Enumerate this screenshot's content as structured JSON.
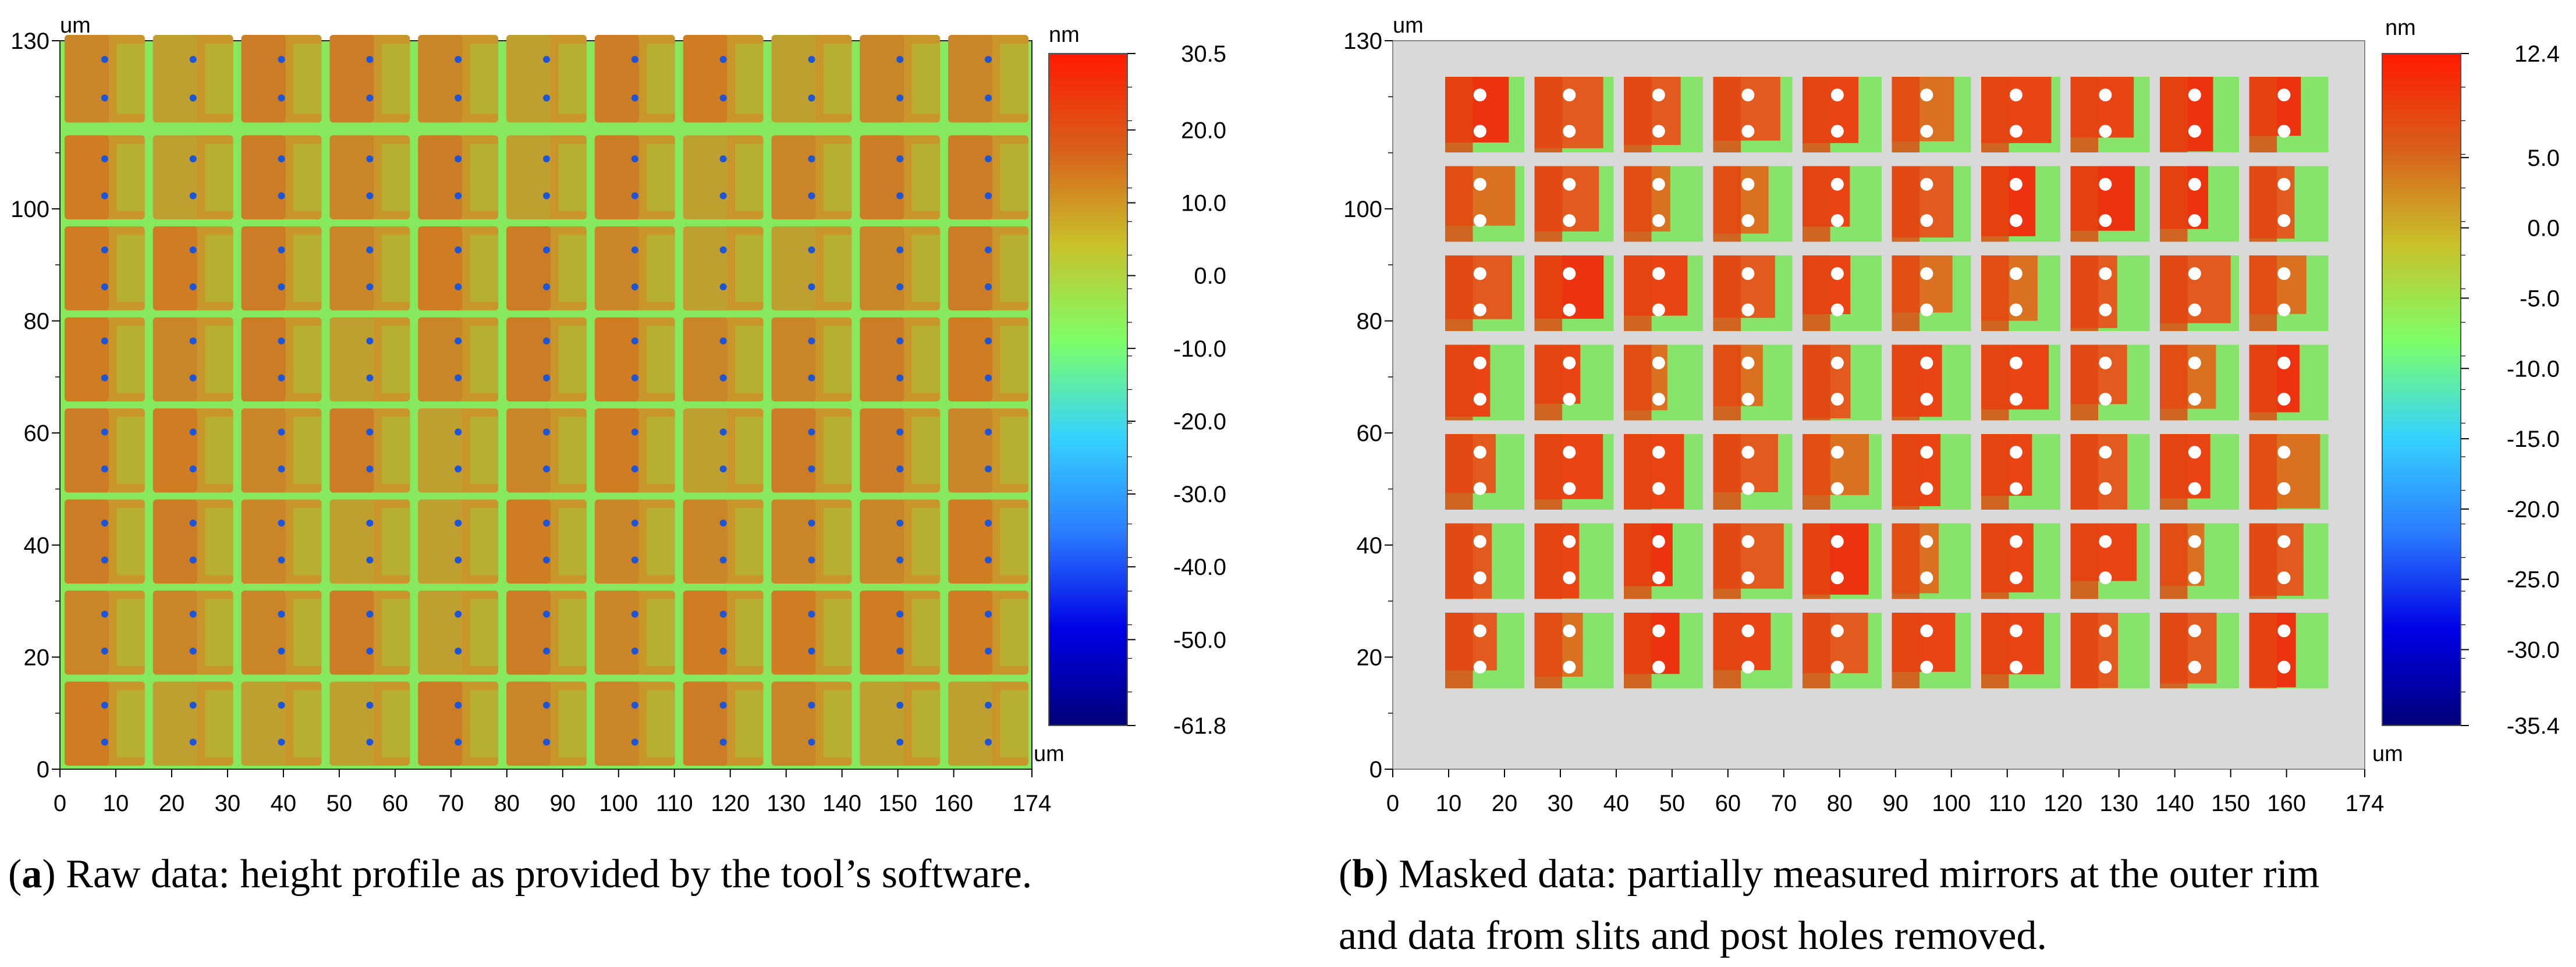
{
  "chart_data": [
    {
      "type": "heatmap",
      "panel_label": "a",
      "caption_text": "Raw data: height profile as provided by the tool’s software.",
      "x_unit": "um",
      "y_unit": "um",
      "colorbar_unit": "nm",
      "xlim": [
        0,
        174
      ],
      "ylim": [
        0,
        130
      ],
      "x_ticks": [
        "0",
        "10",
        "20",
        "30",
        "40",
        "50",
        "60",
        "70",
        "80",
        "90",
        "100",
        "110",
        "120",
        "130",
        "140",
        "150",
        "160",
        "174"
      ],
      "y_ticks": [
        "0",
        "20",
        "40",
        "60",
        "80",
        "100",
        "130"
      ],
      "colorbar_range": [
        -61.8,
        30.5
      ],
      "colorbar_ticks": [
        "30.5",
        "20.0",
        "10.0",
        "0.0",
        "-10.0",
        "-20.0",
        "-30.0",
        "-40.0",
        "-50.0",
        "-61.8"
      ],
      "mirror_grid": {
        "columns": 11,
        "rows": 8
      },
      "masked": false
    },
    {
      "type": "heatmap",
      "panel_label": "b",
      "caption_line1": "Masked data: partially measured mirrors at the outer rim",
      "caption_line2": "and data from slits and post holes removed.",
      "x_unit": "um",
      "y_unit": "um",
      "colorbar_unit": "nm",
      "xlim": [
        0,
        174
      ],
      "ylim": [
        0,
        130
      ],
      "x_ticks": [
        "0",
        "10",
        "20",
        "30",
        "40",
        "50",
        "60",
        "70",
        "80",
        "90",
        "100",
        "110",
        "120",
        "130",
        "140",
        "150",
        "160",
        "174"
      ],
      "y_ticks": [
        "0",
        "20",
        "40",
        "60",
        "80",
        "100",
        "130"
      ],
      "colorbar_range": [
        -35.4,
        12.4
      ],
      "colorbar_ticks": [
        "12.4",
        "5.0",
        "0.0",
        "-5.0",
        "-10.0",
        "-15.0",
        "-20.0",
        "-25.0",
        "-30.0",
        "-35.4"
      ],
      "mirror_grid": {
        "columns": 10,
        "rows": 7
      },
      "masked": true
    }
  ],
  "colors": {
    "mask_background": "#d9d9d9",
    "hole": "#ffffff",
    "raw_hole": "#1c55d8",
    "colormap": [
      "#00007a",
      "#0000e6",
      "#2a7bff",
      "#35d2ff",
      "#7dff68",
      "#c8c22a",
      "#d8601a",
      "#ff1a00"
    ]
  }
}
